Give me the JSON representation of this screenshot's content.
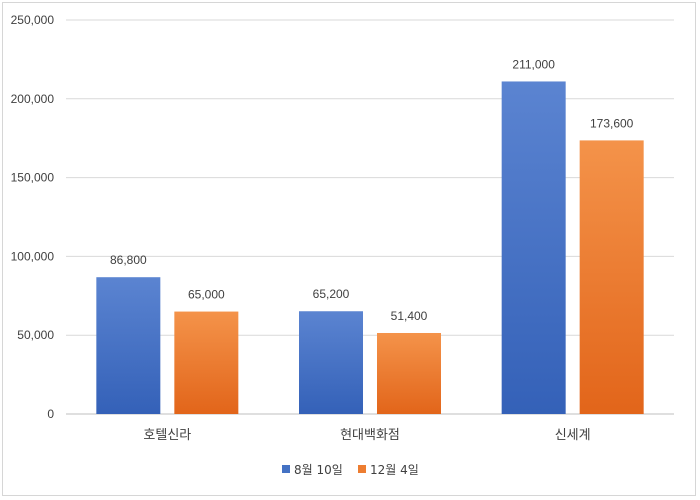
{
  "chart_data": {
    "type": "bar",
    "categories": [
      "호텔신라",
      "현대백화점",
      "신세계"
    ],
    "series": [
      {
        "name": "8월 10일",
        "values": [
          86800,
          65200,
          211000
        ],
        "color": "#4472C4"
      },
      {
        "name": "12월 4일",
        "values": [
          65000,
          51400,
          173600
        ],
        "color": "#ED7D31"
      }
    ],
    "data_labels": [
      [
        "86,800",
        "65,200",
        "211,000"
      ],
      [
        "65,000",
        "51,400",
        "173,600"
      ]
    ],
    "ylim": [
      0,
      250000
    ],
    "yticks": [
      0,
      50000,
      100000,
      150000,
      200000,
      250000
    ],
    "ytick_labels": [
      "0",
      "50,000",
      "100,000",
      "150,000",
      "200,000",
      "250,000"
    ],
    "grid": true,
    "legend_position": "bottom"
  }
}
